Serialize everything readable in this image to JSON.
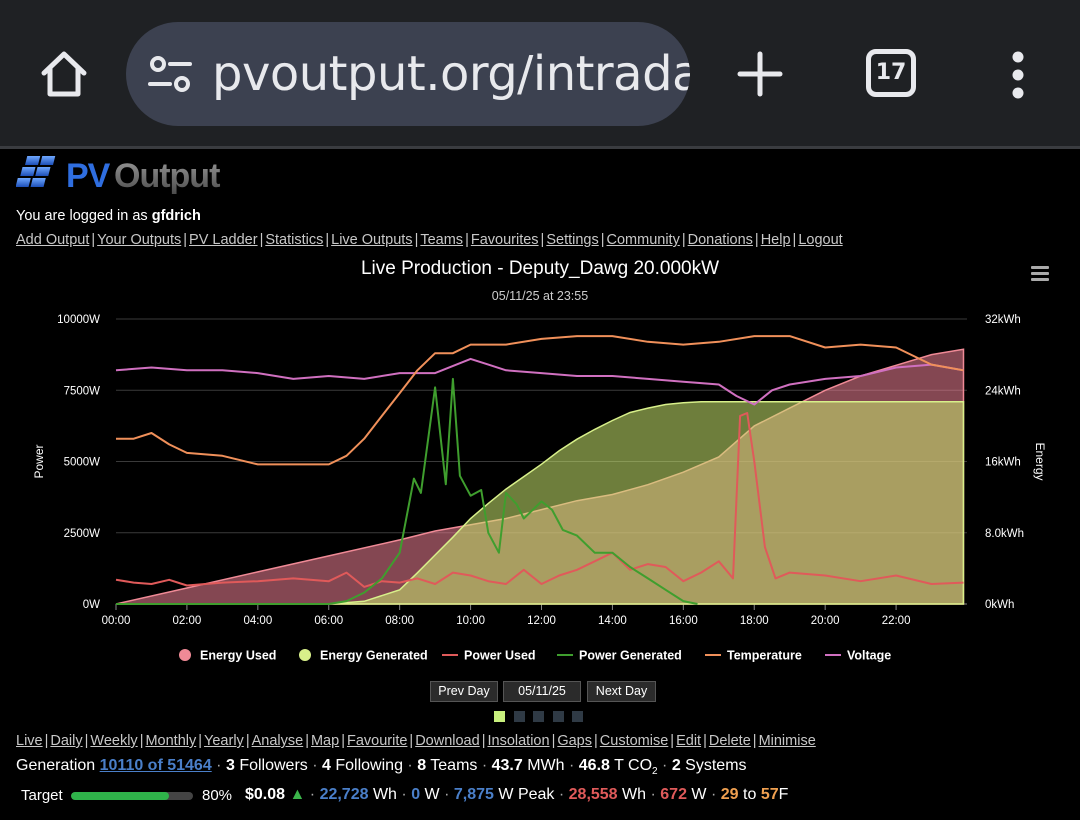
{
  "browser": {
    "url": "pvoutput.org/intraday",
    "tab_count": "17",
    "icons": [
      "home-icon",
      "site-settings-icon",
      "new-tab-icon",
      "tab-switcher-icon",
      "more-vert-icon"
    ]
  },
  "site": {
    "logo_text": "PVOutput",
    "login_prefix": "You are logged in as",
    "username": "gfdrich",
    "nav": [
      "Add Output",
      "Your Outputs",
      "PV Ladder",
      "Statistics",
      "Live Outputs",
      "Teams",
      "Favourites",
      "Settings",
      "Community",
      "Donations",
      "Help",
      "Logout"
    ]
  },
  "chart_data": {
    "type": "area",
    "title": "Live Production - Deputy_Dawg 20.000kW",
    "subtitle": "05/11/25 at 23:55",
    "x_ticks": [
      "00:00",
      "02:00",
      "04:00",
      "06:00",
      "08:00",
      "10:00",
      "12:00",
      "14:00",
      "16:00",
      "18:00",
      "20:00",
      "22:00"
    ],
    "x_range_hours": [
      0,
      24
    ],
    "y_left": {
      "label": "Power",
      "ticks": [
        "10000W",
        "7500W",
        "5000W",
        "2500W",
        "0W"
      ],
      "range": [
        0,
        10000
      ]
    },
    "y_right": {
      "label": "Energy",
      "ticks": [
        "32kWh",
        "24kWh",
        "16kWh",
        "8.0kWh",
        "0kWh"
      ],
      "range": [
        0,
        32
      ]
    },
    "grid": true,
    "legend_position": "bottom",
    "legend": [
      {
        "name": "Energy Used",
        "color": "#f08a96",
        "marker": "circle"
      },
      {
        "name": "Energy Generated",
        "color": "#d8f08a",
        "marker": "circle"
      },
      {
        "name": "Power Used",
        "color": "#e05a5a",
        "marker": "line"
      },
      {
        "name": "Power Generated",
        "color": "#3f9e2e",
        "marker": "line"
      },
      {
        "name": "Temperature",
        "color": "#f0905a",
        "marker": "line"
      },
      {
        "name": "Voltage",
        "color": "#d070c0",
        "marker": "line"
      }
    ],
    "series": [
      {
        "name": "Energy Used",
        "unit": "kWh",
        "axis": "right",
        "x": [
          0,
          2,
          4,
          6,
          8,
          9,
          10,
          11,
          12,
          13,
          14,
          15,
          16,
          17,
          18,
          19,
          20,
          21,
          22,
          23,
          23.9
        ],
        "values": [
          0,
          1.8,
          3.6,
          5.4,
          7.2,
          8.2,
          8.9,
          9.6,
          10.6,
          11.6,
          12.3,
          13.4,
          14.8,
          16.5,
          20.0,
          22.0,
          24.0,
          25.6,
          26.8,
          28.0,
          28.6
        ]
      },
      {
        "name": "Energy Generated",
        "unit": "kWh",
        "axis": "right",
        "x": [
          0,
          6,
          7,
          8,
          8.5,
          9,
          9.5,
          10,
          10.5,
          11,
          11.5,
          12,
          12.5,
          13,
          13.5,
          14,
          14.5,
          15,
          15.5,
          16,
          16.5,
          17,
          18,
          20,
          22,
          23.9
        ],
        "values": [
          0,
          0,
          0.3,
          1.6,
          3.5,
          5.5,
          7.5,
          9.6,
          11.3,
          12.9,
          14.3,
          15.7,
          17.2,
          18.5,
          19.6,
          20.6,
          21.5,
          22.0,
          22.4,
          22.6,
          22.7,
          22.7,
          22.7,
          22.7,
          22.7,
          22.7
        ]
      },
      {
        "name": "Power Used",
        "unit": "W",
        "axis": "left",
        "x": [
          0,
          0.5,
          1,
          1.5,
          2,
          3,
          4,
          5,
          6,
          6.5,
          7,
          7.5,
          8,
          8.5,
          9,
          9.5,
          10,
          10.5,
          11,
          11.5,
          12,
          12.5,
          13,
          13.5,
          14,
          14.5,
          15,
          15.5,
          16,
          16.5,
          17,
          17.4,
          17.6,
          17.8,
          18,
          18.3,
          18.6,
          19,
          20,
          21,
          22,
          23,
          23.9
        ],
        "values": [
          850,
          750,
          700,
          850,
          650,
          750,
          800,
          900,
          800,
          1100,
          600,
          800,
          750,
          900,
          700,
          1100,
          1000,
          800,
          700,
          1200,
          700,
          1000,
          1200,
          1500,
          1800,
          1200,
          1400,
          1300,
          800,
          1100,
          1500,
          900,
          6600,
          6700,
          5000,
          2000,
          900,
          1100,
          1000,
          800,
          1000,
          700,
          750
        ]
      },
      {
        "name": "Power Generated",
        "unit": "W",
        "axis": "left",
        "x": [
          0,
          6,
          6.5,
          7,
          7.5,
          8,
          8.4,
          8.6,
          9,
          9.3,
          9.5,
          9.7,
          10,
          10.3,
          10.5,
          10.8,
          11,
          11.3,
          11.5,
          12,
          12.3,
          12.6,
          13,
          13.5,
          14,
          14.5,
          15,
          15.5,
          16,
          16.4
        ],
        "values": [
          0,
          0,
          100,
          400,
          900,
          1800,
          4400,
          3900,
          7600,
          4200,
          7900,
          4500,
          3800,
          4000,
          2500,
          1800,
          3900,
          3500,
          3000,
          3600,
          3300,
          2600,
          2400,
          1800,
          1800,
          1300,
          900,
          500,
          100,
          0
        ]
      },
      {
        "name": "Temperature",
        "unit": "F",
        "axis": "left",
        "x": [
          0,
          0.5,
          1,
          1.5,
          2,
          3,
          4,
          5,
          6,
          6.5,
          7,
          7.5,
          8,
          8.5,
          9,
          9.5,
          10,
          11,
          12,
          13,
          14,
          15,
          16,
          17,
          18,
          19,
          20,
          21,
          22,
          23,
          23.9
        ],
        "values": [
          5800,
          5800,
          6000,
          5600,
          5300,
          5200,
          4900,
          4900,
          4900,
          5200,
          5800,
          6600,
          7400,
          8200,
          8800,
          8800,
          9100,
          9100,
          9300,
          9400,
          9400,
          9200,
          9100,
          9200,
          9400,
          9400,
          9000,
          9100,
          9000,
          8400,
          8200
        ]
      },
      {
        "name": "Voltage",
        "unit": "V",
        "axis": "left",
        "x": [
          0,
          1,
          2,
          3,
          4,
          5,
          6,
          7,
          8,
          9,
          10,
          10.5,
          11,
          12,
          13,
          14,
          15,
          16,
          17,
          17.5,
          18,
          18.5,
          19,
          20,
          21,
          22,
          23,
          23.9
        ],
        "values": [
          8200,
          8300,
          8200,
          8200,
          8100,
          7900,
          8000,
          7900,
          8100,
          8100,
          8600,
          8400,
          8200,
          8100,
          8000,
          8000,
          7900,
          7800,
          7700,
          7300,
          7000,
          7500,
          7700,
          7900,
          8000,
          8300,
          8400,
          8200
        ]
      }
    ]
  },
  "controls": {
    "prev_day": "Prev Day",
    "date": "05/11/25",
    "next_day": "Next Day",
    "page_dots": 5,
    "active_dot": 0
  },
  "nav2": [
    "Live",
    "Daily",
    "Weekly",
    "Monthly",
    "Yearly",
    "Analyse",
    "Map",
    "Favourite",
    "Download",
    "Insolation",
    "Gaps",
    "Customise",
    "Edit",
    "Delete",
    "Minimise"
  ],
  "footer": {
    "generation_label": "Generation",
    "rank": "10110 of 51464",
    "followers_count": "3",
    "followers_label": "Followers",
    "following_count": "4",
    "following_label": "Following",
    "teams_count": "8",
    "teams_label": "Teams",
    "mwh_value": "43.7",
    "mwh_unit": "MWh",
    "co2_value": "46.8",
    "co2_unit": "T CO",
    "co2_sub": "2",
    "systems_count": "2",
    "systems_label": "Systems",
    "target_label": "Target",
    "target_pct": "80%",
    "target_fraction": 0.8,
    "money": "$0.08",
    "gen_wh": "22,728",
    "gen_wh_unit": "Wh",
    "gen_w": "0",
    "gen_w_unit": "W",
    "peak": "7,875",
    "peak_unit": "W Peak",
    "used_wh": "28,558",
    "used_wh_unit": "Wh",
    "used_w": "672",
    "used_w_unit": "W",
    "temp_low": "29",
    "temp_to": "to",
    "temp_high": "57",
    "temp_unit": "F"
  }
}
